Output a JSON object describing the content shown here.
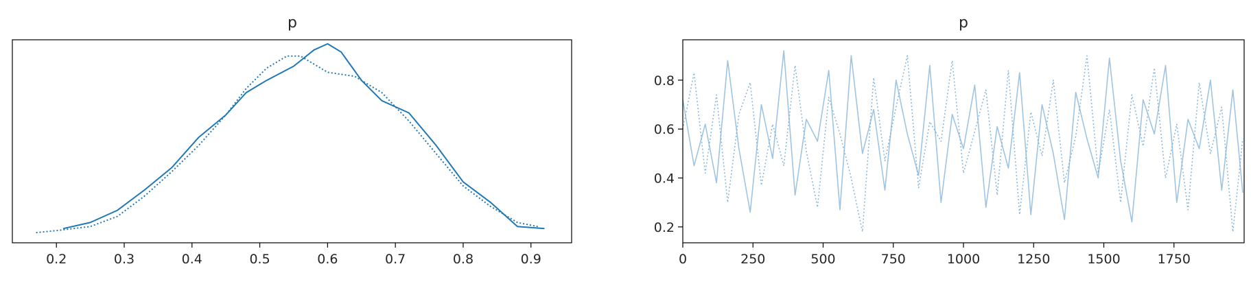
{
  "chart_data": [
    {
      "type": "line",
      "title": "p",
      "xlabel": "",
      "ylabel": "",
      "xlim": [
        0.135,
        0.96
      ],
      "ylim": [
        0,
        1
      ],
      "x_ticks": [
        0.2,
        0.3,
        0.4,
        0.5,
        0.6,
        0.7,
        0.8,
        0.9
      ],
      "x_tick_labels": [
        "0.2",
        "0.3",
        "0.4",
        "0.5",
        "0.6",
        "0.7",
        "0.8",
        "0.9"
      ],
      "y_ticks": [],
      "grid": false,
      "colors": {
        "line": "#1f77b4"
      },
      "series": [
        {
          "style": "solid",
          "x": [
            0.21,
            0.25,
            0.29,
            0.33,
            0.37,
            0.41,
            0.45,
            0.48,
            0.51,
            0.55,
            0.58,
            0.6,
            0.62,
            0.65,
            0.68,
            0.72,
            0.76,
            0.8,
            0.84,
            0.88,
            0.92
          ],
          "y": [
            0.07,
            0.1,
            0.16,
            0.26,
            0.37,
            0.52,
            0.63,
            0.74,
            0.8,
            0.87,
            0.95,
            0.98,
            0.94,
            0.8,
            0.7,
            0.64,
            0.48,
            0.3,
            0.2,
            0.08,
            0.07
          ]
        },
        {
          "style": "dotted",
          "x": [
            0.17,
            0.2,
            0.25,
            0.29,
            0.33,
            0.37,
            0.41,
            0.45,
            0.48,
            0.51,
            0.54,
            0.56,
            0.58,
            0.6,
            0.64,
            0.68,
            0.72,
            0.76,
            0.8,
            0.84,
            0.88,
            0.91
          ],
          "y": [
            0.05,
            0.06,
            0.08,
            0.13,
            0.23,
            0.35,
            0.48,
            0.63,
            0.76,
            0.86,
            0.92,
            0.92,
            0.88,
            0.84,
            0.82,
            0.74,
            0.6,
            0.44,
            0.28,
            0.18,
            0.1,
            0.08
          ]
        }
      ]
    },
    {
      "type": "line",
      "title": "p",
      "xlabel": "",
      "ylabel": "",
      "xlim": [
        0,
        2000
      ],
      "ylim": [
        0.135,
        0.965
      ],
      "x_ticks": [
        0,
        250,
        500,
        750,
        1000,
        1250,
        1500,
        1750
      ],
      "x_tick_labels": [
        "0",
        "250",
        "500",
        "750",
        "1000",
        "1250",
        "1500",
        "1750"
      ],
      "y_ticks": [
        0.2,
        0.4,
        0.6,
        0.8
      ],
      "y_tick_labels": [
        "0.2",
        "0.4",
        "0.6",
        "0.8"
      ],
      "grid": false,
      "colors": {
        "line": "#7fb0d8"
      },
      "series": [
        {
          "style": "solid",
          "x": [
            0,
            40,
            80,
            120,
            160,
            200,
            240,
            280,
            320,
            360,
            400,
            440,
            480,
            520,
            560,
            600,
            640,
            680,
            720,
            760,
            800,
            840,
            880,
            920,
            960,
            1000,
            1040,
            1080,
            1120,
            1160,
            1200,
            1240,
            1280,
            1320,
            1360,
            1400,
            1440,
            1480,
            1520,
            1560,
            1600,
            1640,
            1680,
            1720,
            1760,
            1800,
            1840,
            1880,
            1920,
            1960,
            1995
          ],
          "y": [
            0.72,
            0.45,
            0.62,
            0.38,
            0.88,
            0.52,
            0.26,
            0.7,
            0.48,
            0.92,
            0.33,
            0.64,
            0.55,
            0.84,
            0.27,
            0.9,
            0.5,
            0.68,
            0.35,
            0.8,
            0.58,
            0.41,
            0.86,
            0.3,
            0.66,
            0.52,
            0.78,
            0.28,
            0.61,
            0.44,
            0.83,
            0.25,
            0.7,
            0.5,
            0.23,
            0.75,
            0.56,
            0.4,
            0.89,
            0.47,
            0.22,
            0.72,
            0.58,
            0.86,
            0.3,
            0.64,
            0.52,
            0.8,
            0.35,
            0.76,
            0.34
          ]
        },
        {
          "style": "dotted",
          "x": [
            0,
            40,
            80,
            120,
            160,
            200,
            240,
            280,
            320,
            360,
            400,
            440,
            480,
            520,
            560,
            600,
            640,
            680,
            720,
            760,
            800,
            840,
            880,
            920,
            960,
            1000,
            1040,
            1080,
            1120,
            1160,
            1200,
            1240,
            1280,
            1320,
            1360,
            1400,
            1440,
            1480,
            1520,
            1560,
            1600,
            1640,
            1680,
            1720,
            1760,
            1800,
            1840,
            1880,
            1920,
            1960,
            1995
          ],
          "y": [
            0.6,
            0.83,
            0.42,
            0.74,
            0.3,
            0.66,
            0.79,
            0.37,
            0.62,
            0.45,
            0.86,
            0.51,
            0.28,
            0.73,
            0.58,
            0.4,
            0.18,
            0.81,
            0.47,
            0.69,
            0.9,
            0.36,
            0.63,
            0.55,
            0.88,
            0.42,
            0.59,
            0.76,
            0.33,
            0.84,
            0.25,
            0.67,
            0.49,
            0.8,
            0.38,
            0.57,
            0.9,
            0.42,
            0.68,
            0.3,
            0.74,
            0.53,
            0.85,
            0.4,
            0.62,
            0.27,
            0.79,
            0.5,
            0.69,
            0.18,
            0.56
          ]
        }
      ]
    }
  ]
}
